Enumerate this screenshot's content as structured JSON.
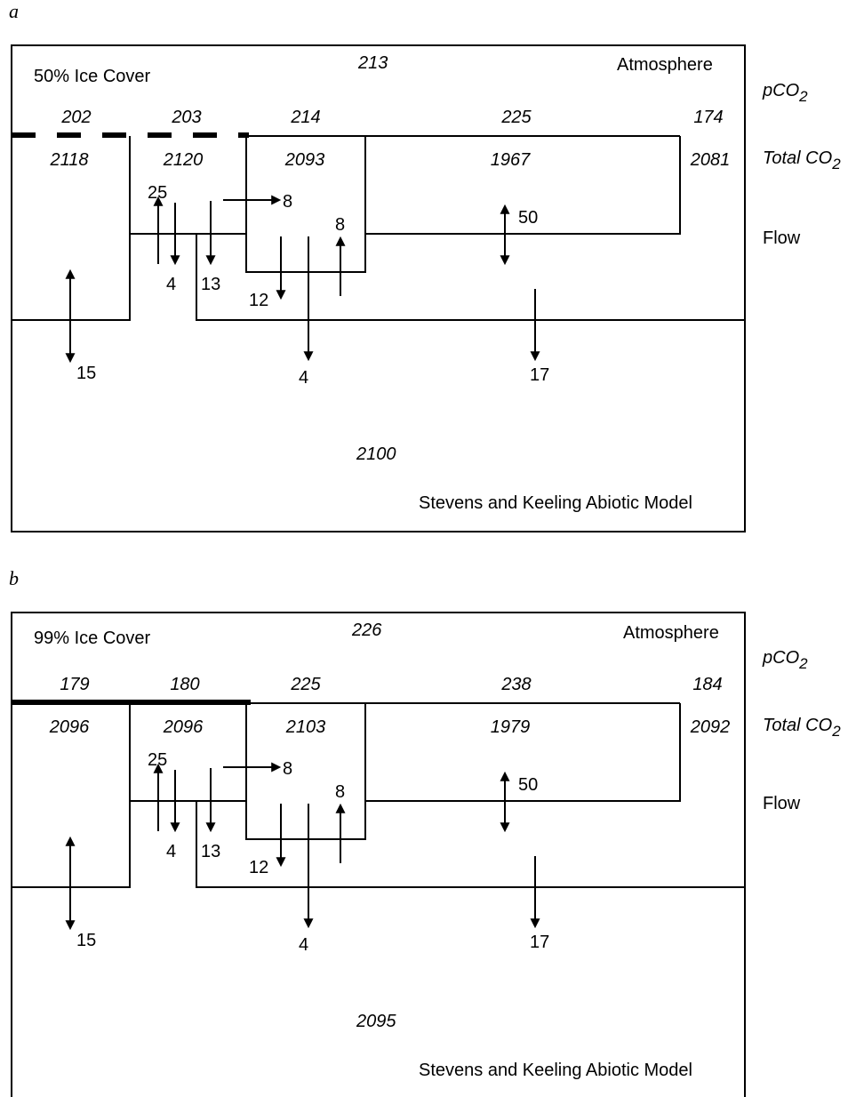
{
  "panels": [
    {
      "letter": "a",
      "ice_cover": "50% Ice Cover",
      "atmosphere_label": "Atmosphere",
      "atm_pco2": "213",
      "pco2": [
        "202",
        "203",
        "214",
        "225",
        "174"
      ],
      "total_co2": [
        "2118",
        "2120",
        "2093",
        "1967",
        "2081"
      ],
      "deep_total_co2": "2100",
      "flows": {
        "f15": "15",
        "f25": "25",
        "f4a": "4",
        "f13": "13",
        "f8r": "8",
        "f12": "12",
        "f8u": "8",
        "f4b": "4",
        "f50": "50",
        "f17": "17"
      },
      "model_label": "Stevens and Keeling Abiotic Model",
      "ice_style": "dashed"
    },
    {
      "letter": "b",
      "ice_cover": "99% Ice Cover",
      "atmosphere_label": "Atmosphere",
      "atm_pco2": "226",
      "pco2": [
        "179",
        "180",
        "225",
        "238",
        "184"
      ],
      "total_co2": [
        "2096",
        "2096",
        "2103",
        "1979",
        "2092"
      ],
      "deep_total_co2": "2095",
      "flows": {
        "f15": "15",
        "f25": "25",
        "f4a": "4",
        "f13": "13",
        "f8r": "8",
        "f12": "12",
        "f8u": "8",
        "f4b": "4",
        "f50": "50",
        "f17": "17"
      },
      "model_label": "Stevens and Keeling Abiotic Model",
      "ice_style": "solid"
    }
  ],
  "side_labels": {
    "pco2_main": "pCO",
    "pco2_sub": "2",
    "total_main": "Total CO",
    "total_sub": "2",
    "flow": "Flow"
  }
}
